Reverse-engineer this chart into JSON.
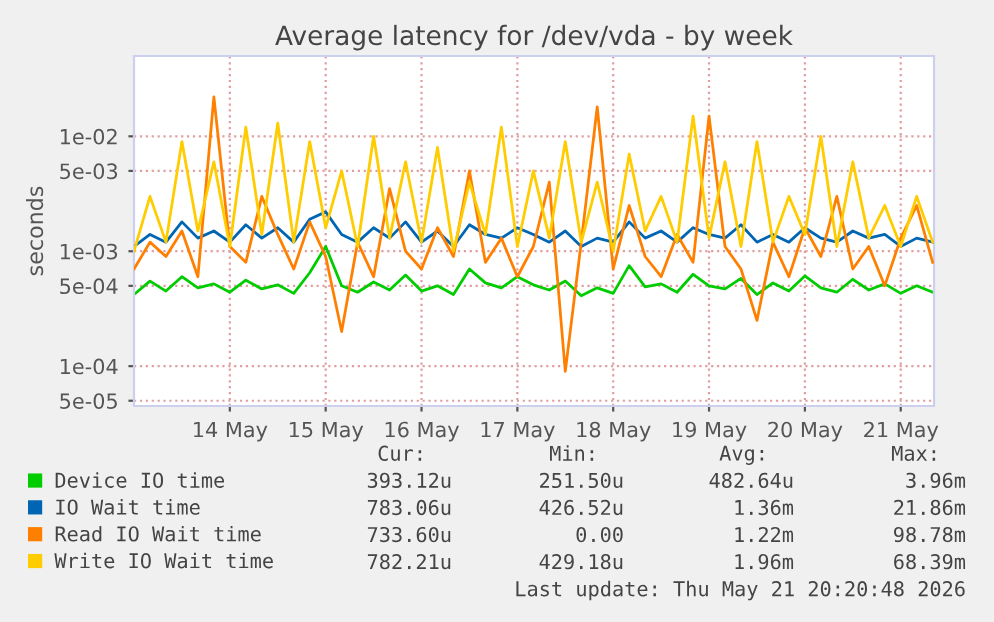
{
  "chart_data": {
    "type": "line",
    "title": "Average latency for /dev/vda - by week",
    "ylabel": "seconds",
    "log": "y",
    "grid": true,
    "legend": "bottom",
    "x": [
      "2026-05-13T12:00",
      "2026-05-13T16:00",
      "2026-05-13T20:00",
      "2026-05-14T00:00",
      "2026-05-14T04:00",
      "2026-05-14T08:00",
      "2026-05-14T12:00",
      "2026-05-14T16:00",
      "2026-05-14T20:00",
      "2026-05-15T00:00",
      "2026-05-15T04:00",
      "2026-05-15T08:00",
      "2026-05-15T12:00",
      "2026-05-15T16:00",
      "2026-05-15T20:00",
      "2026-05-16T00:00",
      "2026-05-16T04:00",
      "2026-05-16T08:00",
      "2026-05-16T12:00",
      "2026-05-16T16:00",
      "2026-05-16T20:00",
      "2026-05-17T00:00",
      "2026-05-17T04:00",
      "2026-05-17T08:00",
      "2026-05-17T12:00",
      "2026-05-17T16:00",
      "2026-05-17T20:00",
      "2026-05-18T00:00",
      "2026-05-18T04:00",
      "2026-05-18T08:00",
      "2026-05-18T12:00",
      "2026-05-18T16:00",
      "2026-05-18T20:00",
      "2026-05-19T00:00",
      "2026-05-19T04:00",
      "2026-05-19T08:00",
      "2026-05-19T12:00",
      "2026-05-19T16:00",
      "2026-05-19T20:00",
      "2026-05-20T00:00",
      "2026-05-20T04:00",
      "2026-05-20T08:00",
      "2026-05-20T12:00",
      "2026-05-20T16:00",
      "2026-05-20T20:00",
      "2026-05-21T00:00",
      "2026-05-21T04:00",
      "2026-05-21T08:00",
      "2026-05-21T12:00",
      "2026-05-21T16:00",
      "2026-05-21T20:00"
    ],
    "series": [
      {
        "name": "Device IO time",
        "color": "#00cc00",
        "values": [
          0.00042,
          0.00055,
          0.00045,
          0.0006,
          0.00048,
          0.00052,
          0.00044,
          0.00056,
          0.00047,
          0.00051,
          0.00043,
          0.00065,
          0.0011,
          0.0005,
          0.00044,
          0.00054,
          0.00046,
          0.00062,
          0.00045,
          0.0005,
          0.00042,
          0.0007,
          0.00053,
          0.00048,
          0.0006,
          0.00051,
          0.00046,
          0.00055,
          0.00041,
          0.00048,
          0.00043,
          0.00075,
          0.00049,
          0.00052,
          0.00044,
          0.00063,
          0.0005,
          0.00047,
          0.00058,
          0.00042,
          0.00053,
          0.00045,
          0.00061,
          0.00048,
          0.00044,
          0.00057,
          0.00046,
          0.00052,
          0.00043,
          0.0005,
          0.00044
        ]
      },
      {
        "name": "IO Wait time",
        "color": "#0066b3",
        "values": [
          0.0011,
          0.0014,
          0.0012,
          0.0018,
          0.0013,
          0.0015,
          0.0012,
          0.0017,
          0.0013,
          0.0016,
          0.0012,
          0.0019,
          0.0022,
          0.0014,
          0.0012,
          0.0016,
          0.0013,
          0.0018,
          0.0012,
          0.0015,
          0.0011,
          0.0017,
          0.0014,
          0.0013,
          0.0016,
          0.0014,
          0.0012,
          0.0015,
          0.0011,
          0.0013,
          0.0012,
          0.0018,
          0.0013,
          0.0015,
          0.0012,
          0.0016,
          0.0014,
          0.0013,
          0.0017,
          0.0012,
          0.0014,
          0.0012,
          0.0016,
          0.0013,
          0.0012,
          0.0015,
          0.0013,
          0.0014,
          0.0011,
          0.0013,
          0.0012
        ]
      },
      {
        "name": "Read IO Wait time",
        "color": "#ff8000",
        "values": [
          0.0007,
          0.0012,
          0.0009,
          0.0015,
          0.0006,
          0.022,
          0.0011,
          0.0008,
          0.003,
          0.0014,
          0.0007,
          0.0018,
          0.0009,
          0.0002,
          0.0012,
          0.0006,
          0.0035,
          0.001,
          0.0007,
          0.0016,
          0.0009,
          0.005,
          0.0008,
          0.0013,
          0.0006,
          0.0011,
          0.004,
          9e-05,
          0.0012,
          0.018,
          0.0007,
          0.0025,
          0.0009,
          0.0006,
          0.0014,
          0.0008,
          0.015,
          0.0011,
          0.0007,
          0.00025,
          0.0012,
          0.0006,
          0.0016,
          0.0009,
          0.003,
          0.0007,
          0.0011,
          0.0005,
          0.0013,
          0.0025,
          0.0008
        ]
      },
      {
        "name": "Write IO Wait time",
        "color": "#ffcc00",
        "values": [
          0.001,
          0.003,
          0.0012,
          0.009,
          0.0015,
          0.006,
          0.0011,
          0.012,
          0.0014,
          0.013,
          0.0012,
          0.009,
          0.0016,
          0.005,
          0.0011,
          0.01,
          0.0013,
          0.006,
          0.0012,
          0.008,
          0.001,
          0.004,
          0.0014,
          0.012,
          0.0011,
          0.005,
          0.0013,
          0.009,
          0.0012,
          0.004,
          0.001,
          0.007,
          0.0015,
          0.003,
          0.0012,
          0.015,
          0.0013,
          0.006,
          0.0011,
          0.009,
          0.0012,
          0.003,
          0.0014,
          0.01,
          0.0011,
          0.006,
          0.0013,
          0.0025,
          0.0011,
          0.003,
          0.0012
        ]
      }
    ],
    "xlim": [
      "2026-05-13T12:00",
      "2026-05-21T20:20"
    ],
    "xticks": [
      {
        "value": "2026-05-14T12:00",
        "label": "14 May"
      },
      {
        "value": "2026-05-15T12:00",
        "label": "15 May"
      },
      {
        "value": "2026-05-16T12:00",
        "label": "16 May"
      },
      {
        "value": "2026-05-17T12:00",
        "label": "17 May"
      },
      {
        "value": "2026-05-18T12:00",
        "label": "18 May"
      },
      {
        "value": "2026-05-19T12:00",
        "label": "19 May"
      },
      {
        "value": "2026-05-20T12:00",
        "label": "20 May"
      },
      {
        "value": "2026-05-21T12:00",
        "label": "21 May"
      }
    ],
    "ylim": [
      4.5e-05,
      0.05
    ],
    "yticks": [
      {
        "value": 5e-05,
        "label": "5e-05"
      },
      {
        "value": 0.0001,
        "label": "1e-04"
      },
      {
        "value": 0.0005,
        "label": "5e-04"
      },
      {
        "value": 0.001,
        "label": "1e-03"
      },
      {
        "value": 0.005,
        "label": "5e-03"
      },
      {
        "value": 0.01,
        "label": "1e-02"
      }
    ],
    "annotations": [
      "Cur:",
      "Min:",
      "Avg:",
      "Max:",
      "393.12u",
      "251.50u",
      "482.64u",
      "3.96m",
      "783.06u",
      "426.52u",
      "1.36m",
      "21.86m",
      "733.60u",
      "0.00",
      "1.22m",
      "98.78m",
      "782.21u",
      "429.18u",
      "1.96m",
      "68.39m",
      "Last update: Thu May 21 20:20:48 2026"
    ]
  }
}
